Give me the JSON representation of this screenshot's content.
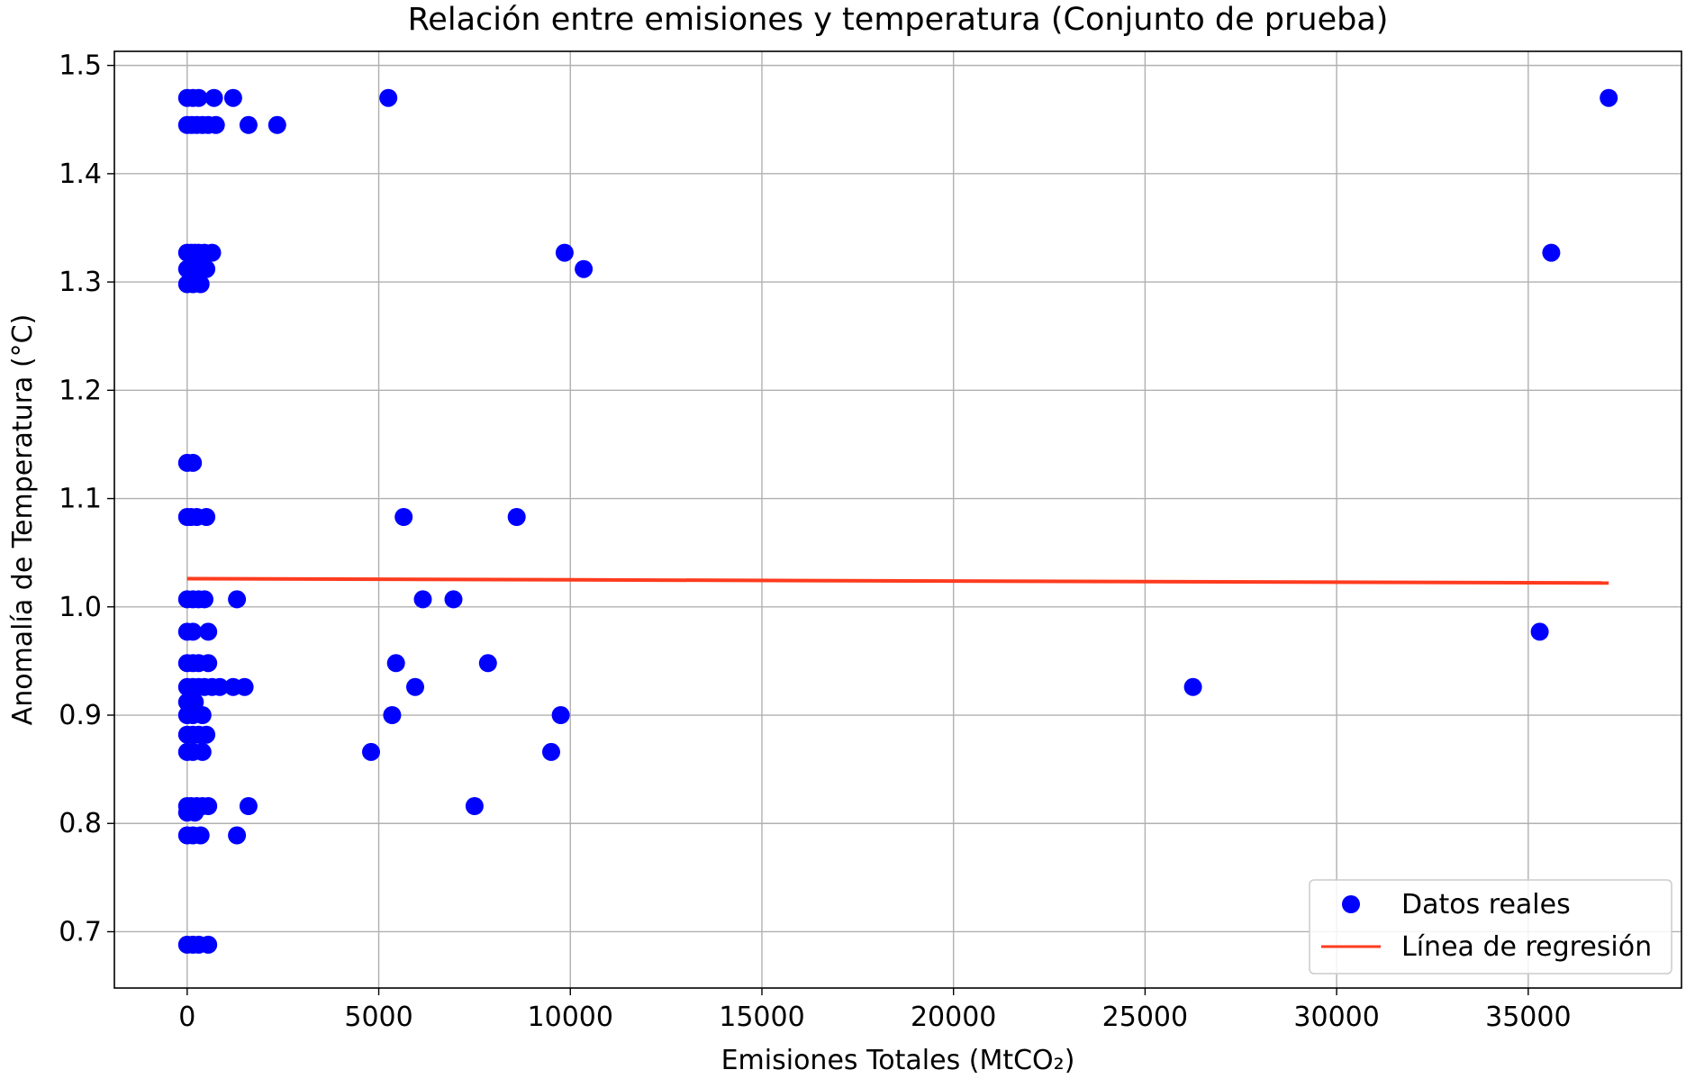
{
  "chart_data": {
    "type": "scatter",
    "title": "Relación entre emisiones y temperatura (Conjunto de prueba)",
    "xlabel": "Emisiones Totales (MtCO₂)",
    "ylabel": "Anomalía de Temperatura (°C)",
    "xlim": [
      -1900,
      39000
    ],
    "ylim": [
      0.648,
      1.513
    ],
    "xticks": [
      0,
      5000,
      10000,
      15000,
      20000,
      25000,
      30000,
      35000
    ],
    "yticks": [
      0.7,
      0.8,
      0.9,
      1.0,
      1.1,
      1.2,
      1.3,
      1.4,
      1.5
    ],
    "xtick_labels": [
      "0",
      "5000",
      "10000",
      "15000",
      "20000",
      "25000",
      "30000",
      "35000"
    ],
    "ytick_labels": [
      "0.7",
      "0.8",
      "0.9",
      "1.0",
      "1.1",
      "1.2",
      "1.3",
      "1.4",
      "1.5"
    ],
    "grid": true,
    "legend_position": "bottom-right",
    "series": [
      {
        "name": "Datos reales",
        "kind": "scatter",
        "color": "#0000ff",
        "points": [
          [
            0,
            1.47
          ],
          [
            150,
            1.47
          ],
          [
            300,
            1.47
          ],
          [
            700,
            1.47
          ],
          [
            1200,
            1.47
          ],
          [
            5250,
            1.47
          ],
          [
            37100,
            1.47
          ],
          [
            0,
            1.445
          ],
          [
            120,
            1.445
          ],
          [
            250,
            1.445
          ],
          [
            400,
            1.445
          ],
          [
            550,
            1.445
          ],
          [
            750,
            1.445
          ],
          [
            1600,
            1.445
          ],
          [
            2350,
            1.445
          ],
          [
            0,
            1.327
          ],
          [
            100,
            1.327
          ],
          [
            200,
            1.327
          ],
          [
            300,
            1.327
          ],
          [
            450,
            1.327
          ],
          [
            650,
            1.327
          ],
          [
            9850,
            1.327
          ],
          [
            35600,
            1.327
          ],
          [
            0,
            1.312
          ],
          [
            150,
            1.312
          ],
          [
            300,
            1.312
          ],
          [
            500,
            1.312
          ],
          [
            10350,
            1.312
          ],
          [
            0,
            1.298
          ],
          [
            150,
            1.298
          ],
          [
            350,
            1.298
          ],
          [
            0,
            1.133
          ],
          [
            150,
            1.133
          ],
          [
            0,
            1.083
          ],
          [
            100,
            1.083
          ],
          [
            250,
            1.083
          ],
          [
            500,
            1.083
          ],
          [
            5650,
            1.083
          ],
          [
            8600,
            1.083
          ],
          [
            0,
            1.007
          ],
          [
            150,
            1.007
          ],
          [
            300,
            1.007
          ],
          [
            450,
            1.007
          ],
          [
            1300,
            1.007
          ],
          [
            6150,
            1.007
          ],
          [
            6950,
            1.007
          ],
          [
            0,
            0.977
          ],
          [
            150,
            0.977
          ],
          [
            550,
            0.977
          ],
          [
            35300,
            0.977
          ],
          [
            0,
            0.948
          ],
          [
            150,
            0.948
          ],
          [
            300,
            0.948
          ],
          [
            550,
            0.948
          ],
          [
            5450,
            0.948
          ],
          [
            7850,
            0.948
          ],
          [
            0,
            0.926
          ],
          [
            150,
            0.926
          ],
          [
            300,
            0.926
          ],
          [
            450,
            0.926
          ],
          [
            650,
            0.926
          ],
          [
            850,
            0.926
          ],
          [
            1200,
            0.926
          ],
          [
            1500,
            0.926
          ],
          [
            5950,
            0.926
          ],
          [
            26250,
            0.926
          ],
          [
            0,
            0.912
          ],
          [
            200,
            0.912
          ],
          [
            0,
            0.9
          ],
          [
            150,
            0.9
          ],
          [
            400,
            0.9
          ],
          [
            5350,
            0.9
          ],
          [
            9750,
            0.9
          ],
          [
            0,
            0.882
          ],
          [
            150,
            0.882
          ],
          [
            300,
            0.882
          ],
          [
            500,
            0.882
          ],
          [
            0,
            0.866
          ],
          [
            150,
            0.866
          ],
          [
            400,
            0.866
          ],
          [
            4800,
            0.866
          ],
          [
            9500,
            0.866
          ],
          [
            0,
            0.816
          ],
          [
            100,
            0.816
          ],
          [
            250,
            0.816
          ],
          [
            400,
            0.816
          ],
          [
            550,
            0.816
          ],
          [
            1600,
            0.816
          ],
          [
            7500,
            0.816
          ],
          [
            0,
            0.81
          ],
          [
            200,
            0.81
          ],
          [
            0,
            0.789
          ],
          [
            150,
            0.789
          ],
          [
            350,
            0.789
          ],
          [
            1300,
            0.789
          ],
          [
            0,
            0.688
          ],
          [
            150,
            0.688
          ],
          [
            300,
            0.688
          ],
          [
            550,
            0.688
          ]
        ]
      },
      {
        "name": "Línea de regresión",
        "kind": "line",
        "color": "#ff3b1f",
        "points": [
          [
            0,
            1.026
          ],
          [
            37100,
            1.022
          ]
        ]
      }
    ]
  }
}
